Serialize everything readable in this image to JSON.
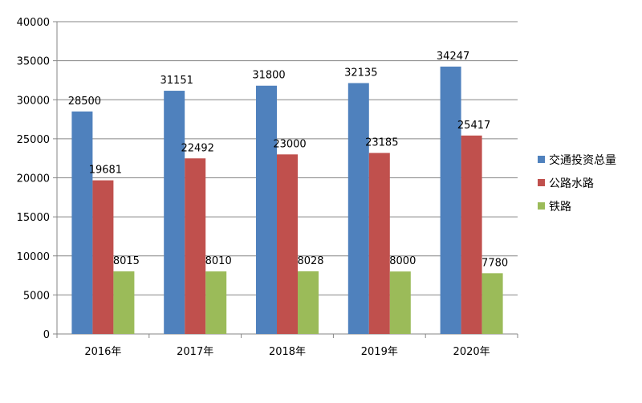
{
  "chart_data": {
    "type": "bar",
    "title": "",
    "xlabel": "",
    "ylabel": "",
    "categories": [
      "2016年",
      "2017年",
      "2018年",
      "2019年",
      "2020年"
    ],
    "series": [
      {
        "name": "交通投资总量",
        "color": "#4F81BD",
        "values": [
          28500,
          31151,
          31800,
          32135,
          34247
        ]
      },
      {
        "name": "公路水路",
        "color": "#C0504D",
        "values": [
          19681,
          22492,
          23000,
          23185,
          25417
        ]
      },
      {
        "name": "铁路",
        "color": "#9BBB59",
        "values": [
          8015,
          8010,
          8028,
          8000,
          7780
        ]
      }
    ],
    "ylim": [
      0,
      40000
    ],
    "yticks": [
      0,
      5000,
      10000,
      15000,
      20000,
      25000,
      30000,
      35000,
      40000
    ],
    "grid": true,
    "legend_position": "right"
  }
}
